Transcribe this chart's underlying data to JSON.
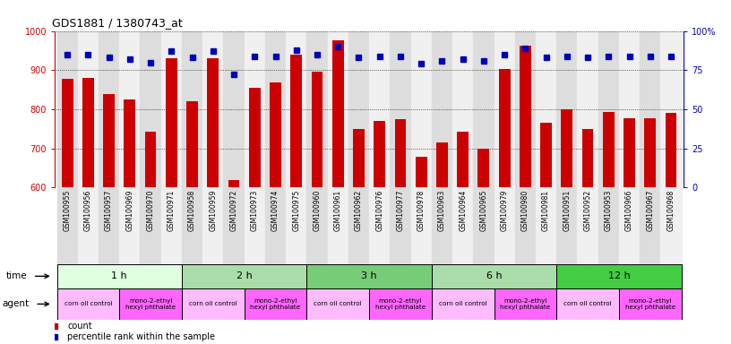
{
  "title": "GDS1881 / 1380743_at",
  "samples": [
    "GSM100955",
    "GSM100956",
    "GSM100957",
    "GSM100969",
    "GSM100970",
    "GSM100971",
    "GSM100958",
    "GSM100959",
    "GSM100972",
    "GSM100973",
    "GSM100974",
    "GSM100975",
    "GSM100960",
    "GSM100961",
    "GSM100962",
    "GSM100976",
    "GSM100977",
    "GSM100978",
    "GSM100963",
    "GSM100964",
    "GSM100965",
    "GSM100979",
    "GSM100980",
    "GSM100981",
    "GSM100951",
    "GSM100952",
    "GSM100953",
    "GSM100966",
    "GSM100967",
    "GSM100968"
  ],
  "counts": [
    878,
    880,
    838,
    826,
    742,
    930,
    820,
    930,
    620,
    855,
    868,
    940,
    895,
    975,
    750,
    770,
    775,
    678,
    716,
    742,
    700,
    903,
    962,
    765,
    800,
    750,
    793,
    778,
    778,
    790
  ],
  "percentiles": [
    85,
    85,
    83,
    82,
    80,
    87,
    83,
    87,
    72,
    84,
    84,
    88,
    85,
    90,
    83,
    84,
    84,
    79,
    81,
    82,
    81,
    85,
    89,
    83,
    84,
    83,
    84,
    84,
    84,
    84
  ],
  "time_groups": [
    {
      "label": "1 h",
      "start": 0,
      "end": 6,
      "color": "#e0ffe0"
    },
    {
      "label": "2 h",
      "start": 6,
      "end": 12,
      "color": "#aaddaa"
    },
    {
      "label": "3 h",
      "start": 12,
      "end": 18,
      "color": "#77cc77"
    },
    {
      "label": "6 h",
      "start": 18,
      "end": 24,
      "color": "#aaddaa"
    },
    {
      "label": "12 h",
      "start": 24,
      "end": 30,
      "color": "#44cc44"
    }
  ],
  "agent_groups": [
    {
      "label": "corn oil control",
      "start": 0,
      "end": 3,
      "color": "#ffbbff"
    },
    {
      "label": "mono-2-ethyl\nhexyl phthalate",
      "start": 3,
      "end": 6,
      "color": "#ff66ff"
    },
    {
      "label": "corn oil control",
      "start": 6,
      "end": 9,
      "color": "#ffbbff"
    },
    {
      "label": "mono-2-ethyl\nhexyl phthalate",
      "start": 9,
      "end": 12,
      "color": "#ff66ff"
    },
    {
      "label": "corn oil control",
      "start": 12,
      "end": 15,
      "color": "#ffbbff"
    },
    {
      "label": "mono-2-ethyl\nhexyl phthalate",
      "start": 15,
      "end": 18,
      "color": "#ff66ff"
    },
    {
      "label": "corn oil control",
      "start": 18,
      "end": 21,
      "color": "#ffbbff"
    },
    {
      "label": "mono-2-ethyl\nhexyl phthalate",
      "start": 21,
      "end": 24,
      "color": "#ff66ff"
    },
    {
      "label": "corn oil control",
      "start": 24,
      "end": 27,
      "color": "#ffbbff"
    },
    {
      "label": "mono-2-ethyl\nhexyl phthalate",
      "start": 27,
      "end": 30,
      "color": "#ff66ff"
    }
  ],
  "bar_color": "#cc0000",
  "dot_color": "#0000bb",
  "ymin": 600,
  "ymax": 1000,
  "yright_min": 0,
  "yright_max": 100,
  "yticks_left": [
    600,
    700,
    800,
    900,
    1000
  ],
  "yticks_right": [
    0,
    25,
    50,
    75,
    100
  ],
  "background_color": "#ffffff",
  "tick_label_bg_even": "#dddddd",
  "tick_label_bg_odd": "#f0f0f0"
}
